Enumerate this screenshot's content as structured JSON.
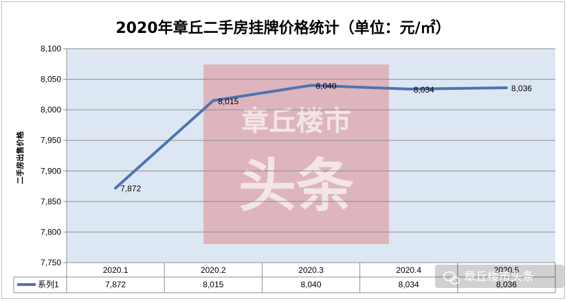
{
  "chart_data": {
    "type": "line",
    "title": "2020年章丘二手房挂牌价格统计（单位：元/㎡）",
    "ylabel": "二手房出售价格",
    "xlabel": "",
    "categories": [
      "2020.1",
      "2020.2",
      "2020.3",
      "2020.4",
      "2020.5"
    ],
    "series": [
      {
        "name": "系列1",
        "values": [
          7872,
          8015,
          8040,
          8034,
          8036
        ],
        "color": "#4f73b3"
      }
    ],
    "value_labels": [
      "7,872",
      "8,015",
      "8,040",
      "8,034",
      "8,036"
    ],
    "ylim": [
      7750,
      8100
    ],
    "yticks": [
      7750,
      7800,
      7850,
      7900,
      7950,
      8000,
      8050,
      8100
    ],
    "ytick_labels": [
      "7,750",
      "7,800",
      "7,850",
      "7,900",
      "7,950",
      "8,000",
      "8,050",
      "8,100"
    ],
    "grid": true,
    "legend": "data-table",
    "data_table": true,
    "plot_background": "#dde7f3"
  },
  "watermark": {
    "line1": "章丘楼市",
    "line2": "头条",
    "color": "#e05a5a"
  },
  "wechat_badge": {
    "text": "章丘楼市头条"
  }
}
